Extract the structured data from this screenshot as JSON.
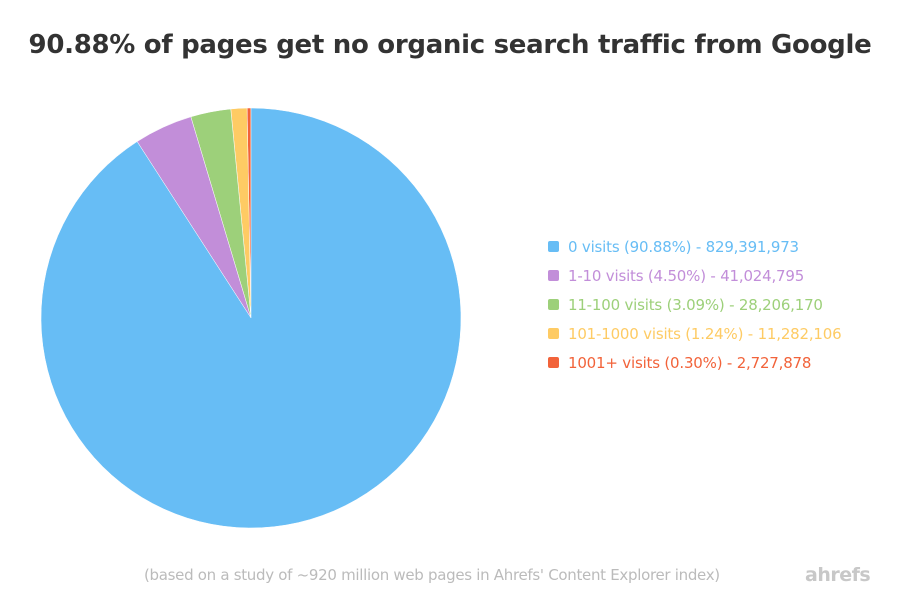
{
  "title": "90.88% of pages get no organic search traffic from Google",
  "legend": [
    {
      "label": "0 visits (90.88%) - 829,391,973",
      "color": "#67bdf5"
    },
    {
      "label": "1-10 visits (4.50%) - 41,024,795",
      "color": "#c28ed9"
    },
    {
      "label": "11-100 visits (3.09%) - 28,206,170",
      "color": "#9dd07a"
    },
    {
      "label": "101-1000 visits (1.24%) - 11,282,106",
      "color": "#fecb64"
    },
    {
      "label": "1001+ visits (0.30%) - 2,727,878",
      "color": "#f2633a"
    }
  ],
  "footnote": "(based on a study of ~920 million web pages in Ahrefs' Content Explorer index)",
  "logo": "ahrefs",
  "chart_data": {
    "type": "pie",
    "title": "90.88% of pages get no organic search traffic from Google",
    "categories": [
      "0 visits",
      "1-10 visits",
      "11-100 visits",
      "101-1000 visits",
      "1001+ visits"
    ],
    "values": [
      829391973,
      41024795,
      28206170,
      11282106,
      2727878
    ],
    "percentages": [
      90.88,
      4.5,
      3.09,
      1.24,
      0.3
    ],
    "colors": [
      "#67bdf5",
      "#c28ed9",
      "#9dd07a",
      "#fecb64",
      "#f2633a"
    ],
    "legend_position": "right",
    "annotation": "(based on a study of ~920 million web pages in Ahrefs' Content Explorer index)"
  }
}
